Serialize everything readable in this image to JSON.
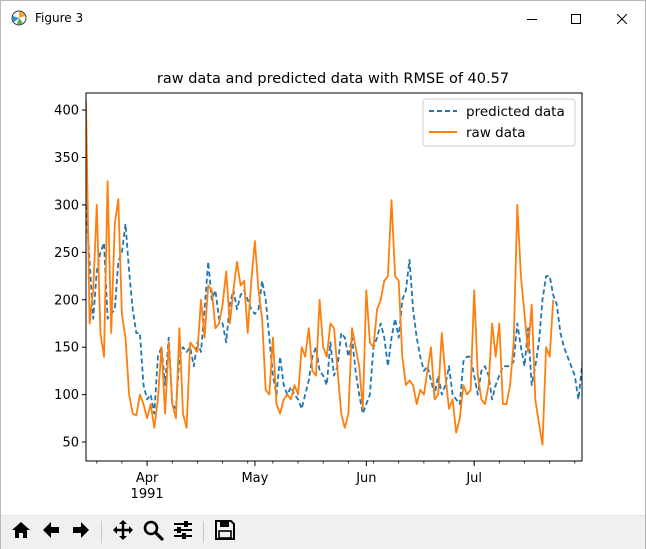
{
  "window": {
    "title": "Figure 3",
    "icon": "matplotlib-icon",
    "controls": [
      "minimize-icon",
      "maximize-icon",
      "close-icon"
    ]
  },
  "toolbar": {
    "tools": [
      "home-icon",
      "back-arrow-icon",
      "forward-arrow-icon",
      "pan-icon",
      "zoom-icon",
      "configure-subplots-icon",
      "save-icon"
    ]
  },
  "colors": {
    "predicted": "#1f77b4",
    "raw": "#ff7f0e"
  },
  "chart_data": {
    "type": "line",
    "title": "raw data and predicted data with RMSE of 40.57",
    "xlabel": "",
    "ylabel": "",
    "x_start": "1991-03-15",
    "x_end": "1991-07-31",
    "xlim": [
      "1991-03-15",
      "1991-07-31"
    ],
    "ylim": [
      30,
      418
    ],
    "yticks": [
      50,
      100,
      150,
      200,
      250,
      300,
      350,
      400
    ],
    "xticks": [
      {
        "date": "1991-04-01",
        "label": "Apr",
        "sublabel": "1991"
      },
      {
        "date": "1991-05-01",
        "label": "May",
        "sublabel": ""
      },
      {
        "date": "1991-06-01",
        "label": "Jun",
        "sublabel": ""
      },
      {
        "date": "1991-07-01",
        "label": "Jul",
        "sublabel": ""
      }
    ],
    "grid": false,
    "legend_position": "top-right",
    "series": [
      {
        "name": "predicted data",
        "style": "dashed",
        "values": [
          [
            0,
            300
          ],
          [
            2,
            180
          ],
          [
            3,
            230
          ],
          [
            4,
            250
          ],
          [
            5,
            260
          ],
          [
            6,
            180
          ],
          [
            7,
            185
          ],
          [
            8,
            190
          ],
          [
            9,
            240
          ],
          [
            10,
            250
          ],
          [
            11,
            280
          ],
          [
            12,
            230
          ],
          [
            13,
            190
          ],
          [
            14,
            165
          ],
          [
            15,
            165
          ],
          [
            16,
            110
          ],
          [
            17,
            95
          ],
          [
            18,
            100
          ],
          [
            19,
            80
          ],
          [
            20,
            140
          ],
          [
            21,
            150
          ],
          [
            22,
            110
          ],
          [
            23,
            160
          ],
          [
            24,
            90
          ],
          [
            25,
            85
          ],
          [
            26,
            140
          ],
          [
            27,
            150
          ],
          [
            28,
            145
          ],
          [
            29,
            150
          ],
          [
            30,
            130
          ],
          [
            31,
            155
          ],
          [
            32,
            145
          ],
          [
            33,
            190
          ],
          [
            34,
            240
          ],
          [
            35,
            200
          ],
          [
            36,
            210
          ],
          [
            37,
            180
          ],
          [
            38,
            175
          ],
          [
            39,
            155
          ],
          [
            40,
            195
          ],
          [
            41,
            210
          ],
          [
            42,
            190
          ],
          [
            43,
            205
          ],
          [
            44,
            210
          ],
          [
            45,
            200
          ],
          [
            46,
            190
          ],
          [
            47,
            185
          ],
          [
            48,
            190
          ],
          [
            49,
            220
          ],
          [
            50,
            200
          ],
          [
            51,
            160
          ],
          [
            52,
            120
          ],
          [
            53,
            100
          ],
          [
            54,
            140
          ],
          [
            55,
            110
          ],
          [
            56,
            100
          ],
          [
            57,
            108
          ],
          [
            58,
            100
          ],
          [
            59,
            95
          ],
          [
            60,
            85
          ],
          [
            61,
            100
          ],
          [
            62,
            115
          ],
          [
            63,
            140
          ],
          [
            64,
            150
          ],
          [
            65,
            125
          ],
          [
            66,
            120
          ],
          [
            67,
            110
          ],
          [
            68,
            155
          ],
          [
            69,
            120
          ],
          [
            70,
            130
          ],
          [
            71,
            165
          ],
          [
            72,
            160
          ],
          [
            73,
            140
          ],
          [
            74,
            160
          ],
          [
            75,
            125
          ],
          [
            76,
            100
          ],
          [
            77,
            80
          ],
          [
            78,
            90
          ],
          [
            79,
            100
          ],
          [
            80,
            150
          ],
          [
            81,
            160
          ],
          [
            82,
            175
          ],
          [
            83,
            160
          ],
          [
            84,
            130
          ],
          [
            85,
            160
          ],
          [
            86,
            180
          ],
          [
            87,
            160
          ],
          [
            88,
            200
          ],
          [
            89,
            210
          ],
          [
            90,
            242
          ],
          [
            91,
            190
          ],
          [
            92,
            160
          ],
          [
            93,
            140
          ],
          [
            94,
            125
          ],
          [
            95,
            130
          ],
          [
            96,
            115
          ],
          [
            97,
            100
          ],
          [
            98,
            120
          ],
          [
            99,
            100
          ],
          [
            100,
            110
          ],
          [
            101,
            130
          ],
          [
            102,
            100
          ],
          [
            103,
            95
          ],
          [
            104,
            90
          ],
          [
            105,
            135
          ],
          [
            106,
            140
          ],
          [
            107,
            140
          ],
          [
            108,
            120
          ],
          [
            109,
            100
          ],
          [
            110,
            125
          ],
          [
            111,
            130
          ],
          [
            112,
            120
          ],
          [
            113,
            95
          ],
          [
            114,
            110
          ],
          [
            115,
            120
          ],
          [
            116,
            130
          ],
          [
            117,
            130
          ],
          [
            118,
            130
          ],
          [
            119,
            135
          ],
          [
            120,
            175
          ],
          [
            121,
            150
          ],
          [
            122,
            130
          ],
          [
            123,
            170
          ],
          [
            124,
            110
          ],
          [
            125,
            130
          ],
          [
            126,
            155
          ],
          [
            127,
            200
          ],
          [
            128,
            225
          ],
          [
            129,
            225
          ],
          [
            130,
            205
          ],
          [
            131,
            195
          ],
          [
            132,
            165
          ],
          [
            133,
            150
          ],
          [
            134,
            140
          ],
          [
            135,
            130
          ],
          [
            136,
            120
          ],
          [
            137,
            95
          ],
          [
            138,
            130
          ],
          [
            139,
            175
          ]
        ]
      },
      {
        "name": "raw data",
        "style": "solid",
        "values": [
          [
            0,
            410
          ],
          [
            1,
            175
          ],
          [
            2,
            210
          ],
          [
            3,
            300
          ],
          [
            4,
            165
          ],
          [
            5,
            140
          ],
          [
            6,
            325
          ],
          [
            7,
            165
          ],
          [
            8,
            280
          ],
          [
            9,
            306
          ],
          [
            10,
            185
          ],
          [
            11,
            160
          ],
          [
            12,
            100
          ],
          [
            13,
            80
          ],
          [
            14,
            78
          ],
          [
            15,
            100
          ],
          [
            16,
            90
          ],
          [
            17,
            75
          ],
          [
            18,
            90
          ],
          [
            19,
            65
          ],
          [
            20,
            95
          ],
          [
            21,
            150
          ],
          [
            22,
            80
          ],
          [
            23,
            155
          ],
          [
            24,
            90
          ],
          [
            25,
            75
          ],
          [
            26,
            170
          ],
          [
            27,
            80
          ],
          [
            28,
            65
          ],
          [
            29,
            155
          ],
          [
            30,
            150
          ],
          [
            31,
            145
          ],
          [
            32,
            200
          ],
          [
            33,
            160
          ],
          [
            34,
            215
          ],
          [
            35,
            210
          ],
          [
            36,
            170
          ],
          [
            37,
            175
          ],
          [
            38,
            195
          ],
          [
            39,
            230
          ],
          [
            40,
            175
          ],
          [
            41,
            210
          ],
          [
            42,
            240
          ],
          [
            43,
            215
          ],
          [
            44,
            220
          ],
          [
            45,
            165
          ],
          [
            46,
            220
          ],
          [
            47,
            262
          ],
          [
            48,
            210
          ],
          [
            49,
            180
          ],
          [
            50,
            105
          ],
          [
            51,
            100
          ],
          [
            52,
            160
          ],
          [
            53,
            90
          ],
          [
            54,
            80
          ],
          [
            55,
            95
          ],
          [
            56,
            100
          ],
          [
            57,
            95
          ],
          [
            58,
            110
          ],
          [
            59,
            100
          ],
          [
            60,
            150
          ],
          [
            61,
            140
          ],
          [
            62,
            170
          ],
          [
            63,
            125
          ],
          [
            64,
            120
          ],
          [
            65,
            200
          ],
          [
            66,
            150
          ],
          [
            67,
            140
          ],
          [
            68,
            175
          ],
          [
            69,
            170
          ],
          [
            70,
            125
          ],
          [
            71,
            80
          ],
          [
            72,
            65
          ],
          [
            73,
            80
          ],
          [
            74,
            170
          ],
          [
            75,
            150
          ],
          [
            76,
            130
          ],
          [
            77,
            85
          ],
          [
            78,
            210
          ],
          [
            79,
            155
          ],
          [
            80,
            150
          ],
          [
            81,
            190
          ],
          [
            82,
            200
          ],
          [
            83,
            220
          ],
          [
            84,
            225
          ],
          [
            85,
            305
          ],
          [
            86,
            225
          ],
          [
            87,
            220
          ],
          [
            88,
            140
          ],
          [
            89,
            110
          ],
          [
            90,
            115
          ],
          [
            91,
            110
          ],
          [
            92,
            90
          ],
          [
            93,
            105
          ],
          [
            94,
            100
          ],
          [
            95,
            125
          ],
          [
            96,
            150
          ],
          [
            97,
            95
          ],
          [
            98,
            100
          ],
          [
            99,
            165
          ],
          [
            100,
            120
          ],
          [
            101,
            85
          ],
          [
            102,
            95
          ],
          [
            103,
            60
          ],
          [
            104,
            75
          ],
          [
            105,
            110
          ],
          [
            106,
            100
          ],
          [
            107,
            105
          ],
          [
            108,
            210
          ],
          [
            109,
            120
          ],
          [
            110,
            95
          ],
          [
            111,
            90
          ],
          [
            112,
            110
          ],
          [
            113,
            175
          ],
          [
            114,
            140
          ],
          [
            115,
            175
          ],
          [
            116,
            90
          ],
          [
            117,
            90
          ],
          [
            118,
            110
          ],
          [
            119,
            155
          ],
          [
            120,
            300
          ],
          [
            121,
            225
          ],
          [
            122,
            185
          ],
          [
            123,
            145
          ],
          [
            124,
            195
          ],
          [
            125,
            95
          ],
          [
            126,
            70
          ],
          [
            127,
            47
          ],
          [
            128,
            150
          ],
          [
            129,
            140
          ],
          [
            130,
            200
          ]
        ]
      }
    ]
  }
}
